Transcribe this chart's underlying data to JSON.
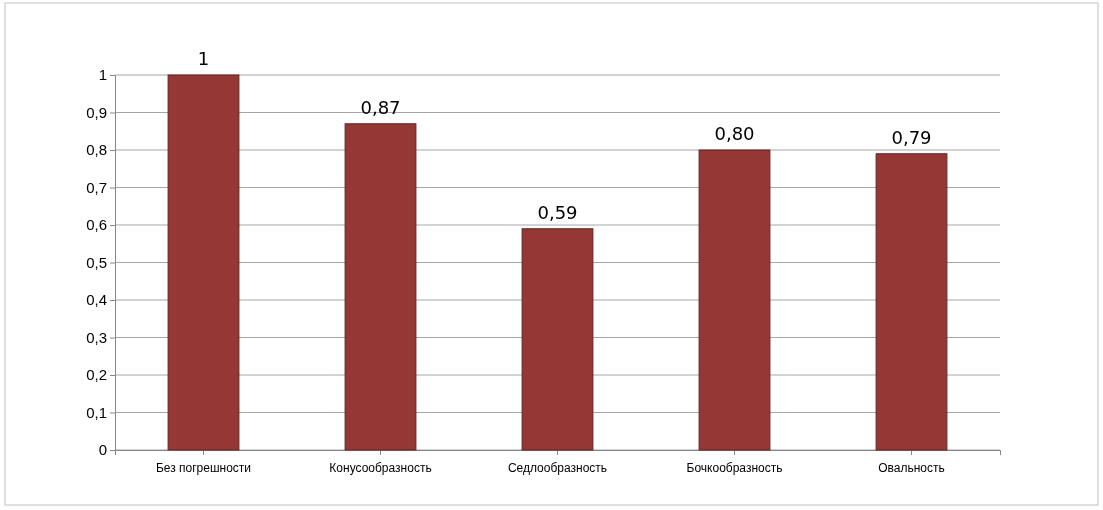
{
  "chart_data": {
    "type": "bar",
    "categories": [
      "Без погрешности",
      "Конусообразность",
      "Седлообразность",
      "Бочкообразность",
      "Овальность"
    ],
    "values": [
      1,
      0.87,
      0.59,
      0.8,
      0.79
    ],
    "value_labels": [
      "1",
      "0,87",
      "0,59",
      "0,80",
      "0,79"
    ],
    "color": "#953735",
    "ylim": [
      0,
      1
    ],
    "yticks": [
      {
        "value": 0,
        "label": "0"
      },
      {
        "value": 0.1,
        "label": "0,1"
      },
      {
        "value": 0.2,
        "label": "0,2"
      },
      {
        "value": 0.3,
        "label": "0,3"
      },
      {
        "value": 0.4,
        "label": "0,4"
      },
      {
        "value": 0.5,
        "label": "0,5"
      },
      {
        "value": 0.6,
        "label": "0,6"
      },
      {
        "value": 0.7,
        "label": "0,7"
      },
      {
        "value": 0.8,
        "label": "0,8"
      },
      {
        "value": 0.9,
        "label": "0,9"
      },
      {
        "value": 1,
        "label": "1"
      }
    ],
    "grid": "y"
  }
}
